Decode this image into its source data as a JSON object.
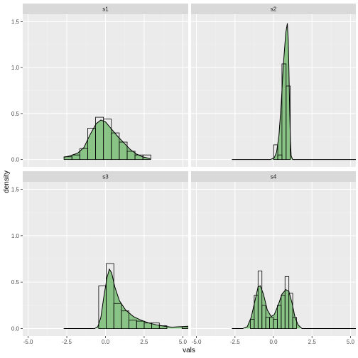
{
  "chart_data": {
    "type": "histogram-density-facets",
    "xlabel": "vals",
    "ylabel": "density",
    "xlim": [
      -5.35,
      5.35
    ],
    "ylim": [
      -0.08,
      1.58
    ],
    "x_ticks": [
      -5.0,
      -2.5,
      0.0,
      2.5,
      5.0
    ],
    "x_tick_labels": [
      "-5.0",
      "-2.5",
      "0.0",
      "2.5",
      "5.0"
    ],
    "y_ticks": [
      0.0,
      0.5,
      1.0,
      1.5
    ],
    "y_tick_labels": [
      "0.0",
      "0.5",
      "1.0",
      "1.5"
    ],
    "grid": true,
    "colors": {
      "panel_bg": "#ebebeb",
      "grid_major": "#ffffff",
      "strip_bg": "#d9d9d9",
      "density_fill": "#7fbf7b",
      "density_line": "#000000",
      "hist_line": "#000000"
    },
    "panels": [
      {
        "strip": "s1",
        "hist": [
          {
            "x0": -2.68,
            "x1": -2.17,
            "y": 0.03
          },
          {
            "x0": -2.17,
            "x1": -1.66,
            "y": 0.05
          },
          {
            "x0": -1.66,
            "x1": -1.15,
            "y": 0.12
          },
          {
            "x0": -1.15,
            "x1": -0.64,
            "y": 0.34
          },
          {
            "x0": -0.64,
            "x1": -0.13,
            "y": 0.46
          },
          {
            "x0": -0.13,
            "x1": 0.38,
            "y": 0.44
          },
          {
            "x0": 0.38,
            "x1": 0.89,
            "y": 0.29
          },
          {
            "x0": 0.89,
            "x1": 1.4,
            "y": 0.19
          },
          {
            "x0": 1.4,
            "x1": 1.91,
            "y": 0.09
          },
          {
            "x0": 1.91,
            "x1": 2.42,
            "y": 0.05
          },
          {
            "x0": 2.42,
            "x1": 2.93,
            "y": 0.05
          }
        ],
        "density": [
          [
            -2.7,
            0.025
          ],
          [
            -2.3,
            0.04
          ],
          [
            -1.8,
            0.07
          ],
          [
            -1.4,
            0.13
          ],
          [
            -1.0,
            0.27
          ],
          [
            -0.6,
            0.39
          ],
          [
            -0.3,
            0.43
          ],
          [
            0.0,
            0.41
          ],
          [
            0.4,
            0.33
          ],
          [
            0.8,
            0.25
          ],
          [
            1.2,
            0.18
          ],
          [
            1.6,
            0.11
          ],
          [
            2.0,
            0.06
          ],
          [
            2.4,
            0.03
          ],
          [
            2.9,
            0.01
          ]
        ],
        "range": [
          -2.7,
          5.35
        ]
      },
      {
        "strip": "s2",
        "hist": [
          {
            "x0": 0.01,
            "x1": 0.28,
            "y": 0.16
          },
          {
            "x0": 0.28,
            "x1": 0.55,
            "y": 0.05
          },
          {
            "x0": 0.55,
            "x1": 0.82,
            "y": 1.04
          },
          {
            "x0": 0.82,
            "x1": 1.09,
            "y": 0.8
          }
        ],
        "density": [
          [
            -2.7,
            0.0
          ],
          [
            -0.2,
            0.0
          ],
          [
            0.05,
            0.02
          ],
          [
            0.2,
            0.08
          ],
          [
            0.35,
            0.25
          ],
          [
            0.5,
            0.6
          ],
          [
            0.65,
            1.05
          ],
          [
            0.8,
            1.38
          ],
          [
            0.9,
            1.48
          ],
          [
            0.96,
            1.3
          ],
          [
            1.0,
            1.0
          ],
          [
            1.05,
            0.55
          ],
          [
            1.1,
            0.2
          ],
          [
            1.15,
            0.04
          ],
          [
            1.25,
            0.0
          ],
          [
            5.35,
            0.0
          ]
        ],
        "range": [
          -2.7,
          5.35
        ]
      },
      {
        "strip": "s3",
        "hist": [
          {
            "x0": -0.44,
            "x1": 0.05,
            "y": 0.46
          },
          {
            "x0": 0.05,
            "x1": 0.54,
            "y": 0.7
          },
          {
            "x0": 0.54,
            "x1": 1.03,
            "y": 0.27
          },
          {
            "x0": 1.03,
            "x1": 1.52,
            "y": 0.19
          },
          {
            "x0": 1.52,
            "x1": 2.01,
            "y": 0.09
          },
          {
            "x0": 2.01,
            "x1": 2.5,
            "y": 0.08
          },
          {
            "x0": 2.5,
            "x1": 2.99,
            "y": 0.06
          },
          {
            "x0": 2.99,
            "x1": 3.48,
            "y": 0.06
          },
          {
            "x0": 3.48,
            "x1": 3.97,
            "y": 0.03
          },
          {
            "x0": 3.97,
            "x1": 4.46,
            "y": 0.0
          },
          {
            "x0": 4.46,
            "x1": 4.95,
            "y": 0.0
          },
          {
            "x0": 4.95,
            "x1": 5.35,
            "y": 0.02
          }
        ],
        "density": [
          [
            -2.7,
            0.0
          ],
          [
            -0.7,
            0.0
          ],
          [
            -0.5,
            0.02
          ],
          [
            -0.3,
            0.12
          ],
          [
            -0.1,
            0.35
          ],
          [
            0.1,
            0.55
          ],
          [
            0.25,
            0.64
          ],
          [
            0.4,
            0.6
          ],
          [
            0.6,
            0.45
          ],
          [
            0.9,
            0.3
          ],
          [
            1.3,
            0.2
          ],
          [
            1.8,
            0.13
          ],
          [
            2.3,
            0.09
          ],
          [
            2.8,
            0.06
          ],
          [
            3.3,
            0.04
          ],
          [
            3.8,
            0.025
          ],
          [
            4.3,
            0.015
          ],
          [
            4.8,
            0.02
          ],
          [
            5.35,
            0.025
          ]
        ],
        "range": [
          -2.7,
          5.35
        ]
      },
      {
        "strip": "s4",
        "hist": [
          {
            "x0": -1.5,
            "x1": -1.25,
            "y": 0.1
          },
          {
            "x0": -1.25,
            "x1": -1.0,
            "y": 0.36
          },
          {
            "x0": -1.0,
            "x1": -0.75,
            "y": 0.62
          },
          {
            "x0": -0.75,
            "x1": -0.5,
            "y": 0.25
          },
          {
            "x0": -0.5,
            "x1": -0.25,
            "y": 0.12
          },
          {
            "x0": -0.25,
            "x1": 0.0,
            "y": 0.12
          },
          {
            "x0": 0.0,
            "x1": 0.25,
            "y": 0.1
          },
          {
            "x0": 0.25,
            "x1": 0.5,
            "y": 0.25
          },
          {
            "x0": 0.5,
            "x1": 0.75,
            "y": 0.36
          },
          {
            "x0": 0.75,
            "x1": 1.0,
            "y": 0.56
          },
          {
            "x0": 1.0,
            "x1": 1.25,
            "y": 0.38
          },
          {
            "x0": 1.25,
            "x1": 1.5,
            "y": 0.12
          }
        ],
        "density": [
          [
            -2.7,
            0.0
          ],
          [
            -2.0,
            0.0
          ],
          [
            -1.7,
            0.02
          ],
          [
            -1.45,
            0.12
          ],
          [
            -1.2,
            0.3
          ],
          [
            -1.0,
            0.45
          ],
          [
            -0.85,
            0.46
          ],
          [
            -0.65,
            0.37
          ],
          [
            -0.4,
            0.2
          ],
          [
            -0.15,
            0.13
          ],
          [
            0.05,
            0.15
          ],
          [
            0.3,
            0.25
          ],
          [
            0.55,
            0.37
          ],
          [
            0.8,
            0.42
          ],
          [
            1.0,
            0.4
          ],
          [
            1.2,
            0.28
          ],
          [
            1.4,
            0.12
          ],
          [
            1.6,
            0.04
          ],
          [
            1.85,
            0.0
          ],
          [
            5.35,
            0.0
          ]
        ],
        "range": [
          -2.7,
          5.35
        ]
      }
    ]
  }
}
